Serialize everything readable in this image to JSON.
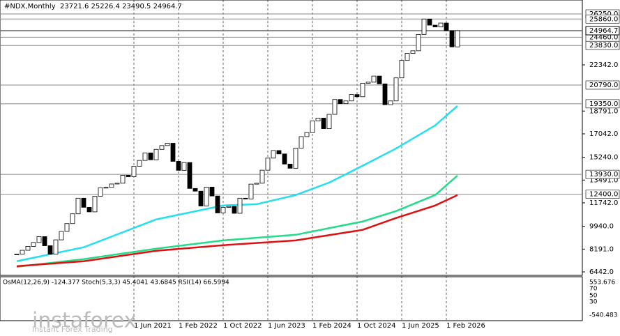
{
  "chart_data": {
    "type": "candlestick",
    "title": "#NDX,Monthly",
    "header_values": "23721.6 25226.4 23490.5 24964.7",
    "closes": [
      7800,
      8100,
      8400,
      8700,
      9150,
      8450,
      7800,
      8900,
      9550,
      10150,
      10900,
      12100,
      11400,
      11050,
      12250,
      12900,
      12930,
      13190,
      13250,
      13860,
      13750,
      14550,
      15000,
      15580,
      15050,
      15850,
      16140,
      16320,
      14930,
      14240,
      14840,
      12850,
      12640,
      11500,
      12950,
      12270,
      10970,
      11400,
      11470,
      10940,
      12100,
      12040,
      13180,
      13250,
      14250,
      15180,
      15760,
      15500,
      14720,
      14400,
      15950,
      16830,
      17140,
      18040,
      18250,
      17440,
      18540,
      19680,
      19360,
      19570,
      20060,
      19890,
      20930,
      21010,
      21480,
      20880,
      19280,
      19570,
      21340,
      22680,
      23220,
      23420,
      24680,
      25860,
      25390,
      25250,
      25550,
      24960,
      23720,
      24964.7
    ],
    "series": [
      {
        "color": "#22e0f0",
        "x": [
          0,
          12,
          25,
          37,
          43,
          50,
          56,
          62,
          68,
          75,
          79
        ],
        "values": [
          7260,
          8330,
          10470,
          11540,
          11640,
          12340,
          13300,
          14590,
          15920,
          17690,
          19190
        ]
      },
      {
        "color": "#22dd88",
        "x": [
          0,
          12,
          25,
          37,
          50,
          62,
          68,
          75,
          79
        ],
        "values": [
          6830,
          7420,
          8220,
          8860,
          9290,
          10310,
          11110,
          12340,
          13840
        ]
      },
      {
        "color": "#e01010",
        "x": [
          0,
          12,
          25,
          37,
          50,
          62,
          68,
          75,
          79
        ],
        "values": [
          6880,
          7260,
          8060,
          8490,
          8860,
          9670,
          10580,
          11540,
          12340
        ]
      }
    ],
    "ylim": [
      6442,
      26250
    ],
    "yticks": [
      {
        "value": 22342,
        "label": "22342.0"
      },
      {
        "value": 18791,
        "label": "18791.0"
      },
      {
        "value": 17042,
        "label": "17042.0"
      },
      {
        "value": 15240,
        "label": "15240.0"
      },
      {
        "value": 13491,
        "label": "13491.0"
      },
      {
        "value": 11742,
        "label": "11742.0"
      },
      {
        "value": 9940,
        "label": "9940.0"
      },
      {
        "value": 8191,
        "label": "8191.0"
      },
      {
        "value": 6442,
        "label": "6442.0"
      }
    ],
    "levels": [
      {
        "value": 26250,
        "label": "26250.0"
      },
      {
        "value": 25860,
        "label": "25860.0"
      },
      {
        "value": 24460,
        "label": "24460.0"
      },
      {
        "value": 23830,
        "label": "23830.0"
      },
      {
        "value": 20790,
        "label": "20790.0"
      },
      {
        "value": 19350,
        "label": "19350.0"
      },
      {
        "value": 13930,
        "label": "13930.0"
      },
      {
        "value": 12400,
        "label": "12400.0"
      }
    ],
    "last_price": {
      "value": 24964.7,
      "label": "24964.7"
    },
    "xticks": [
      "1 Jun 2021",
      "1 Feb 2022",
      "1 Oct 2022",
      "1 Jun 2023",
      "1 Feb 2024",
      "1 Oct 2024",
      "1 Jun 2025",
      "1 Feb 2026"
    ],
    "indicator_header": "OsMA(12,26,9) -124.377 Stoch(5,3,3) 45.4041 43.6845 RSI(14) 66.5994",
    "indicator_ticks": [
      "553.676",
      "70",
      "50",
      "30",
      "-540.483"
    ],
    "watermark": "instaforex",
    "watermark_sub": "Instant Forex Trading"
  }
}
